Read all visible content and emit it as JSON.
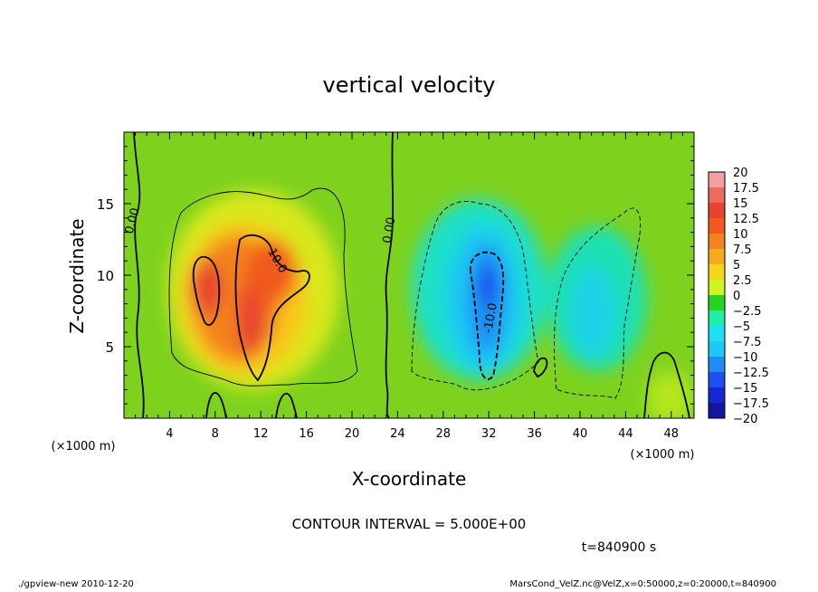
{
  "chart_data": {
    "type": "heatmap",
    "title": "vertical velocity",
    "xlabel": "X-coordinate",
    "ylabel": "Z-coordinate",
    "x_unit": "(×1000 m)",
    "z_unit": "(×1000 m)",
    "xlim": [
      0,
      50
    ],
    "ylim": [
      0,
      20
    ],
    "x_ticks": [
      4,
      8,
      12,
      16,
      20,
      24,
      28,
      32,
      36,
      40,
      44,
      48
    ],
    "y_ticks": [
      5,
      10,
      15
    ],
    "colorbar": {
      "levels": [
        "20",
        "17.5",
        "15",
        "12.5",
        "10",
        "7.5",
        "5",
        "2.5",
        "0",
        "−2.5",
        "−5",
        "−7.5",
        "−10",
        "−12.5",
        "−15",
        "−17.5",
        "−20"
      ],
      "colors": [
        "#f4a0a0",
        "#ee6a5a",
        "#e8432e",
        "#f05a1e",
        "#f4821e",
        "#f8aa1e",
        "#f4d61e",
        "#d2f41e",
        "#28d21e",
        "#1eeeaa",
        "#1ee0f0",
        "#1ec8f4",
        "#1e8cf4",
        "#1e50f0",
        "#1428d2",
        "#1414a0",
        "#7814c8"
      ]
    },
    "contour_labels": [
      "0.00",
      "0.00",
      "10.0",
      "-10.0"
    ],
    "contour_interval": "CONTOUR INTERVAL = 5.000E+00",
    "time_label": "t=840900 s"
  },
  "footer": {
    "left": "./gpview-new   2010-12-20",
    "right": "MarsCond_VelZ.nc@VelZ,x=0:50000,z=0:20000,t=840900"
  }
}
